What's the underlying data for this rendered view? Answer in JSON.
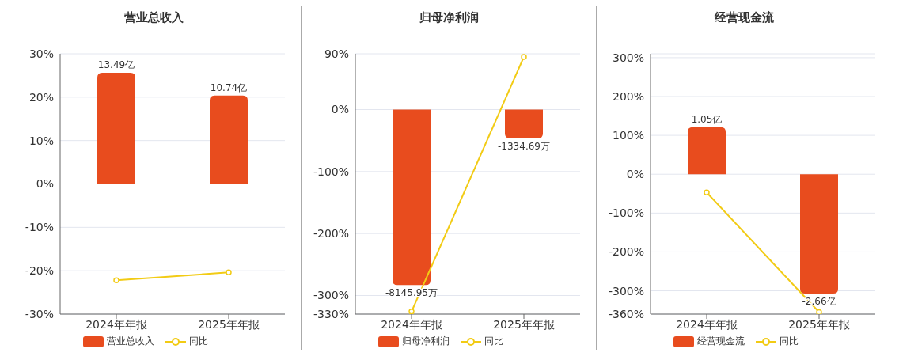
{
  "chart_data": [
    {
      "type": "bar",
      "title": "营业总收入",
      "categories": [
        "2024年年报",
        "2025年年报"
      ],
      "ylim": [
        -30,
        30
      ],
      "yticks": [
        {
          "value": -30,
          "label": "-30%"
        },
        {
          "value": -20,
          "label": "-20%"
        },
        {
          "value": -10,
          "label": "-10%"
        },
        {
          "value": 0,
          "label": "0%"
        },
        {
          "value": 10,
          "label": "10%"
        },
        {
          "value": 20,
          "label": "20%"
        },
        {
          "value": 30,
          "label": "30%"
        }
      ],
      "y2lim": [
        -15.8,
        15.8
      ],
      "tick_labels": true,
      "grid": "y",
      "legend": "bottom",
      "marker": "circle",
      "series": [
        {
          "name": "营业总收入",
          "axis": "y2",
          "color": "#e84c1e",
          "values": [
            13.49,
            10.74
          ],
          "value_labels": [
            "13.49亿",
            "10.74亿"
          ]
        },
        {
          "name": "同比",
          "type": "line",
          "color": "#f2cb14",
          "values": [
            -22.2,
            -20.4
          ]
        }
      ]
    },
    {
      "type": "bar",
      "title": "归母净利润",
      "categories": [
        "2024年年报",
        "2025年年报"
      ],
      "ylim": [
        -330,
        90
      ],
      "yticks": [
        {
          "value": -330,
          "label": "-330%"
        },
        {
          "value": -300,
          "label": "-300%"
        },
        {
          "value": -200,
          "label": "-200%"
        },
        {
          "value": -100,
          "label": "-100%"
        },
        {
          "value": 0,
          "label": "0%"
        },
        {
          "value": 90,
          "label": "90%"
        }
      ],
      "y2lim": [
        -9500,
        2590
      ],
      "tick_labels": true,
      "grid": "y",
      "legend": "bottom",
      "marker": "circle",
      "series": [
        {
          "name": "归母净利润",
          "axis": "y2",
          "color": "#e84c1e",
          "values": [
            -8145.95,
            -1334.69
          ],
          "value_labels": [
            "-8145.95万",
            "-1334.69万"
          ]
        },
        {
          "name": "同比",
          "type": "line",
          "color": "#f2cb14",
          "values": [
            -326,
            85
          ]
        }
      ]
    },
    {
      "type": "bar",
      "title": "经营现金流",
      "categories": [
        "2024年年报",
        "2025年年报"
      ],
      "ylim": [
        -360,
        310
      ],
      "yticks": [
        {
          "value": -360,
          "label": "-360%"
        },
        {
          "value": -300,
          "label": "-300%"
        },
        {
          "value": -200,
          "label": "-200%"
        },
        {
          "value": -100,
          "label": "-100%"
        },
        {
          "value": 0,
          "label": "0%"
        },
        {
          "value": 100,
          "label": "100%"
        },
        {
          "value": 200,
          "label": "200%"
        },
        {
          "value": 300,
          "label": "300%"
        }
      ],
      "y2lim": [
        -3.12,
        2.69
      ],
      "tick_labels": true,
      "grid": "y",
      "legend": "bottom",
      "marker": "circle",
      "series": [
        {
          "name": "经营现金流",
          "axis": "y2",
          "color": "#e84c1e",
          "values": [
            1.05,
            -2.66
          ],
          "value_labels": [
            "1.05亿",
            "-2.66亿"
          ]
        },
        {
          "name": "同比",
          "type": "line",
          "color": "#f2cb14",
          "values": [
            -47,
            -355
          ]
        }
      ]
    }
  ]
}
